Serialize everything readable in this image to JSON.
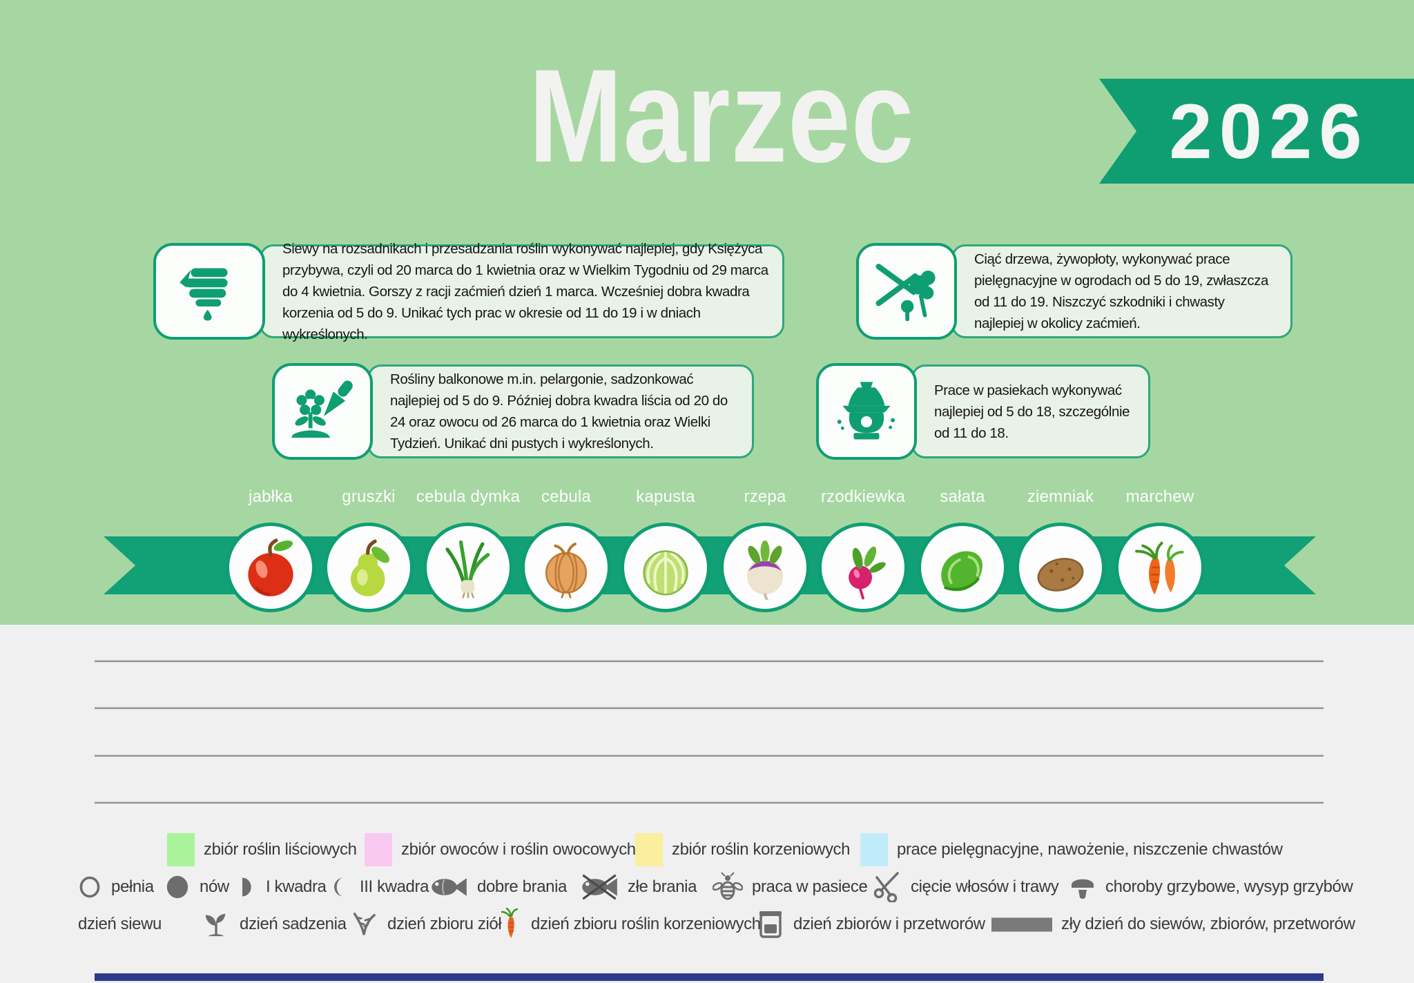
{
  "title": "Marzec",
  "year": "2026",
  "colors": {
    "header_bg": "#a6d7a2",
    "accent_green": "#0f9e72",
    "ribbon_green": "#12a077",
    "panel_bg": "#e9f2e6",
    "notes_bg": "#f0f0f0",
    "footer_bar": "#2c3a8c"
  },
  "info_boxes": [
    {
      "icon": "sowing-hand",
      "text": "Siewy na rozsadnikach i przesadzania roślin wykonywać najlepiej, gdy Księżyca przybywa, czyli od 20 marca do 1 kwietnia oraz w Wielkim Tygodniu od 29 marca do 4 kwietnia. Gorszy z racji zaćmień dzień 1 marca. Wcześniej dobra kwadra korzenia od 5 do 9. Unikać tych prac w okresie od 11 do 19 i w dniach wykreślonych."
    },
    {
      "icon": "pruning-shears",
      "text": "Ciąć drzewa, żywopłoty, wykonywać prace pielęgnacyjne w ogrodach od 5 do 19, zwłaszcza od 11 do 19. Niszczyć szkodniki i chwasty najlepiej w okolicy zaćmień."
    },
    {
      "icon": "flower-trowel",
      "text": "Rośliny balkonowe m.in. pelargonie, sadzonkować najlepiej od 5 do 9. Później dobra kwadra liścia od 20 do 24 oraz owocu od 26 marca do 1 kwietnia oraz Wielki Tydzień. Unikać dni pustych i wykreślonych."
    },
    {
      "icon": "beehive",
      "text": "Prace w pasiekach wykonywać najlepiej od 5 do 18, szczególnie od 11 do 18."
    }
  ],
  "produce": [
    {
      "label": "jabłka",
      "icon": "apple"
    },
    {
      "label": "gruszki",
      "icon": "pear"
    },
    {
      "label": "cebula dymka",
      "icon": "spring-onion"
    },
    {
      "label": "cebula",
      "icon": "onion"
    },
    {
      "label": "kapusta",
      "icon": "cabbage"
    },
    {
      "label": "rzepa",
      "icon": "turnip"
    },
    {
      "label": "rzodkiewka",
      "icon": "radish"
    },
    {
      "label": "sałata",
      "icon": "lettuce"
    },
    {
      "label": "ziemniak",
      "icon": "potato"
    },
    {
      "label": "marchew",
      "icon": "carrots"
    }
  ],
  "legend_colors": [
    {
      "color": "#a9f49b",
      "label": "zbiór roślin liściowych"
    },
    {
      "color": "#f9c9f2",
      "label": "zbiór owoców i roślin owocowych"
    },
    {
      "color": "#fbee9c",
      "label": "zbiór roślin korzeniowych"
    },
    {
      "color": "#c0ecf9",
      "label": "prace pielęgnacyjne, nawożenie, niszczenie chwastów"
    }
  ],
  "legend_symbols": [
    {
      "icon": "full-moon",
      "label": "pełnia"
    },
    {
      "icon": "new-moon",
      "label": "nów"
    },
    {
      "icon": "first-quarter-moon",
      "label": "I kwadra"
    },
    {
      "icon": "third-quarter-moon",
      "label": "III kwadra"
    },
    {
      "icon": "fish",
      "label": "dobre brania"
    },
    {
      "icon": "fish-crossed",
      "label": "złe brania"
    },
    {
      "icon": "bee",
      "label": "praca w pasiece"
    },
    {
      "icon": "scissors",
      "label": "cięcie włosów i trawy"
    },
    {
      "icon": "mushroom",
      "label": "choroby grzybowe, wysyp grzybów"
    }
  ],
  "legend_days": [
    {
      "icon": "sowing-hand",
      "label": "dzień siewu"
    },
    {
      "icon": "seedling",
      "label": "dzień sadzenia"
    },
    {
      "icon": "herbs",
      "label": "dzień zbioru ziół"
    },
    {
      "icon": "carrot",
      "label": "dzień zbioru roślin korzeniowych"
    },
    {
      "icon": "jar",
      "label": "dzień zbiorów i przetworów"
    },
    {
      "icon": "bad-day-bar",
      "label": "zły dzień do siewów, zbiorów, przetworów"
    }
  ]
}
